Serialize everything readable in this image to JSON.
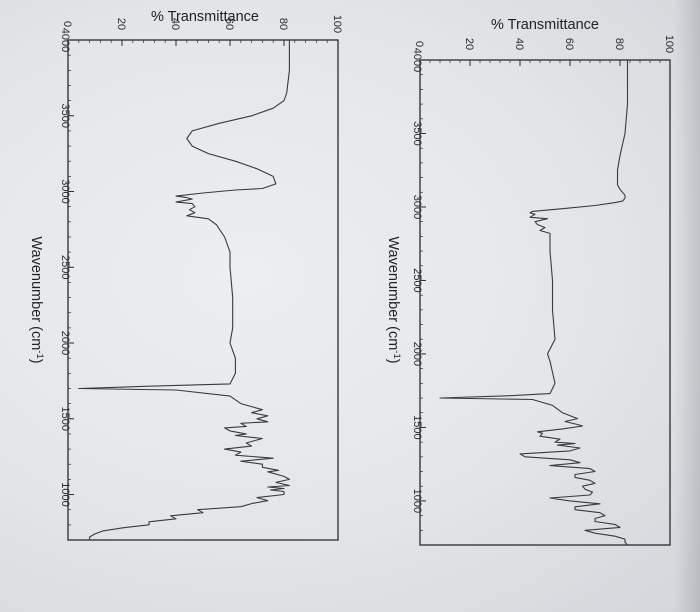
{
  "chart_data": [
    {
      "type": "line",
      "title": "",
      "ylabel": "% Transmittance",
      "xlabel": "Wavenumber (cm",
      "xlabel_sup": "-1",
      "xlabel_close": ")",
      "xlim": [
        4000,
        700
      ],
      "ylim": [
        0,
        100
      ],
      "yticks": [
        "0",
        "20",
        "40",
        "60",
        "80",
        "100"
      ],
      "xticks": [
        "4000",
        "3500",
        "3000",
        "2500",
        "2000",
        "1500",
        "1000"
      ],
      "series": [
        {
          "x": [
            4000,
            3700,
            3500,
            3350,
            3250,
            3150,
            3120,
            3080,
            3060,
            3040,
            3030,
            3010,
            2990,
            2970,
            2960,
            2950,
            2930,
            2920,
            2900,
            2880,
            2860,
            2840,
            2820,
            2700,
            2500,
            2300,
            2100,
            2000,
            1950,
            1800,
            1730,
            1715,
            1700,
            1690,
            1650,
            1600,
            1560,
            1540,
            1520,
            1510,
            1490,
            1470,
            1460,
            1440,
            1420,
            1400,
            1390,
            1380,
            1360,
            1340,
            1320,
            1300,
            1280,
            1260,
            1240,
            1220,
            1200,
            1180,
            1160,
            1140,
            1120,
            1100,
            1080,
            1060,
            1040,
            1020,
            1000,
            980,
            960,
            940,
            920,
            900,
            880,
            860,
            840,
            820,
            800,
            780,
            760,
            740,
            720,
            700
          ],
          "y": [
            83,
            83,
            82,
            80,
            79,
            79,
            80,
            82,
            82,
            81,
            78,
            70,
            58,
            45,
            44,
            46,
            44,
            51,
            46,
            47,
            50,
            48,
            52,
            52,
            53,
            53,
            54,
            51,
            52,
            54,
            52,
            35,
            8,
            45,
            53,
            57,
            63,
            58,
            63,
            65,
            57,
            47,
            49,
            48,
            56,
            54,
            62,
            55,
            64,
            60,
            40,
            42,
            60,
            64,
            52,
            68,
            70,
            62,
            62,
            68,
            70,
            65,
            66,
            69,
            68,
            52,
            60,
            72,
            62,
            62,
            72,
            74,
            70,
            70,
            78,
            80,
            66,
            70,
            78,
            82,
            82,
            83
          ]
        }
      ]
    },
    {
      "type": "line",
      "title": "",
      "ylabel": "% Transmittance",
      "xlabel": "Wavenumber (cm",
      "xlabel_sup": "-1",
      "xlabel_close": ")",
      "xlim": [
        4000,
        700
      ],
      "ylim": [
        0,
        100
      ],
      "yticks": [
        "0",
        "20",
        "40",
        "60",
        "80",
        "100"
      ],
      "xticks": [
        "4000",
        "3500",
        "3000",
        "2500",
        "2000",
        "1500",
        "1000"
      ],
      "series": [
        {
          "x": [
            4000,
            3800,
            3650,
            3600,
            3550,
            3500,
            3450,
            3400,
            3350,
            3300,
            3250,
            3200,
            3150,
            3100,
            3050,
            3020,
            3010,
            2990,
            2970,
            2960,
            2950,
            2930,
            2920,
            2900,
            2880,
            2860,
            2840,
            2820,
            2780,
            2700,
            2600,
            2500,
            2300,
            2100,
            2000,
            1900,
            1800,
            1730,
            1715,
            1700,
            1690,
            1650,
            1600,
            1560,
            1540,
            1520,
            1500,
            1480,
            1470,
            1450,
            1440,
            1420,
            1400,
            1390,
            1370,
            1350,
            1340,
            1320,
            1300,
            1280,
            1260,
            1240,
            1220,
            1200,
            1180,
            1160,
            1150,
            1140,
            1120,
            1100,
            1080,
            1060,
            1050,
            1040,
            1030,
            1020,
            1000,
            980,
            960,
            940,
            920,
            900,
            880,
            860,
            840,
            820,
            800,
            780,
            760,
            740,
            720,
            700
          ],
          "y": [
            82,
            82,
            81,
            80,
            76,
            68,
            56,
            46,
            44,
            46,
            52,
            62,
            70,
            76,
            77,
            72,
            62,
            50,
            40,
            44,
            46,
            40,
            46,
            47,
            45,
            47,
            44,
            52,
            55,
            58,
            60,
            60,
            61,
            61,
            60,
            62,
            62,
            60,
            30,
            4,
            40,
            60,
            64,
            72,
            68,
            74,
            70,
            74,
            64,
            66,
            58,
            60,
            66,
            62,
            72,
            68,
            66,
            68,
            58,
            64,
            62,
            76,
            64,
            72,
            72,
            78,
            74,
            76,
            80,
            82,
            77,
            82,
            74,
            80,
            75,
            80,
            80,
            70,
            74,
            68,
            64,
            48,
            50,
            38,
            40,
            30,
            30,
            20,
            13,
            10,
            8,
            8
          ]
        }
      ]
    }
  ]
}
